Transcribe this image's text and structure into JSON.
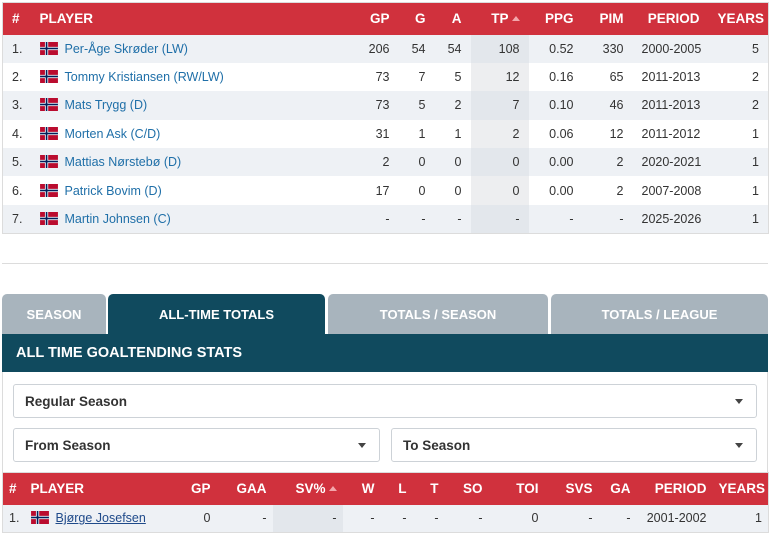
{
  "skater_table": {
    "headers": [
      "#",
      "PLAYER",
      "GP",
      "G",
      "A",
      "TP",
      "PPG",
      "PIM",
      "PERIOD",
      "YEARS"
    ],
    "sorted_column": "TP",
    "rows": [
      {
        "rank": "1.",
        "player": "Per-Åge Skrøder (LW)",
        "gp": "206",
        "g": "54",
        "a": "54",
        "tp": "108",
        "ppg": "0.52",
        "pim": "330",
        "period": "2000-2005",
        "years": "5"
      },
      {
        "rank": "2.",
        "player": "Tommy Kristiansen (RW/LW)",
        "gp": "73",
        "g": "7",
        "a": "5",
        "tp": "12",
        "ppg": "0.16",
        "pim": "65",
        "period": "2011-2013",
        "years": "2"
      },
      {
        "rank": "3.",
        "player": "Mats Trygg (D)",
        "gp": "73",
        "g": "5",
        "a": "2",
        "tp": "7",
        "ppg": "0.10",
        "pim": "46",
        "period": "2011-2013",
        "years": "2"
      },
      {
        "rank": "4.",
        "player": "Morten Ask (C/D)",
        "gp": "31",
        "g": "1",
        "a": "1",
        "tp": "2",
        "ppg": "0.06",
        "pim": "12",
        "period": "2011-2012",
        "years": "1"
      },
      {
        "rank": "5.",
        "player": "Mattias Nørstebø (D)",
        "gp": "2",
        "g": "0",
        "a": "0",
        "tp": "0",
        "ppg": "0.00",
        "pim": "2",
        "period": "2020-2021",
        "years": "1"
      },
      {
        "rank": "6.",
        "player": "Patrick Bovim (D)",
        "gp": "17",
        "g": "0",
        "a": "0",
        "tp": "0",
        "ppg": "0.00",
        "pim": "2",
        "period": "2007-2008",
        "years": "1"
      },
      {
        "rank": "7.",
        "player": "Martin Johnsen (C)",
        "gp": "-",
        "g": "-",
        "a": "-",
        "tp": "-",
        "ppg": "-",
        "pim": "-",
        "period": "2025-2026",
        "years": "1"
      }
    ]
  },
  "tabs": [
    {
      "label": "SEASON",
      "active": false
    },
    {
      "label": "ALL-TIME TOTALS",
      "active": true
    },
    {
      "label": "TOTALS / SEASON",
      "active": false
    },
    {
      "label": "TOTALS / LEAGUE",
      "active": false
    }
  ],
  "goalie_section": {
    "title": "ALL TIME GOALTENDING STATS",
    "season_type": "Regular Season",
    "from_season": "From Season",
    "to_season": "To Season"
  },
  "goalie_table": {
    "headers": [
      "#",
      "PLAYER",
      "GP",
      "GAA",
      "SV%",
      "W",
      "L",
      "T",
      "SO",
      "TOI",
      "SVS",
      "GA",
      "PERIOD",
      "YEARS"
    ],
    "sorted_column": "SV%",
    "rows": [
      {
        "rank": "1.",
        "player": "Bjørge Josefsen",
        "gp": "0",
        "gaa": "-",
        "svp": "-",
        "w": "-",
        "l": "-",
        "t": "-",
        "so": "-",
        "toi": "0",
        "svs": "-",
        "ga": "-",
        "period": "2001-2002",
        "years": "1"
      }
    ]
  },
  "colors": {
    "header_red": "#d0313d",
    "tab_active": "#104a5e",
    "tab_inactive": "#a8b4bd",
    "link": "#1f6fa8"
  },
  "icons": {
    "flag": "norway-flag-icon",
    "dropdown": "caret-down-icon",
    "sort": "sort-asc-icon"
  }
}
